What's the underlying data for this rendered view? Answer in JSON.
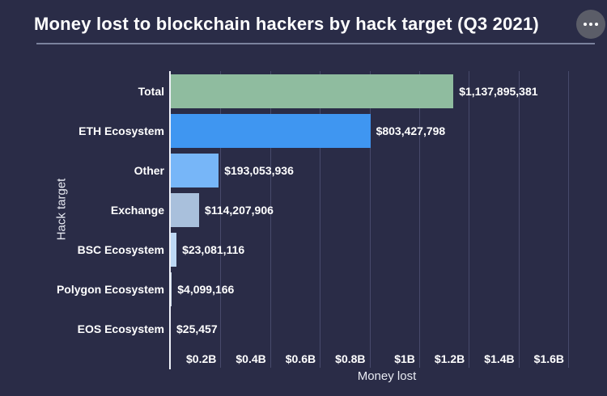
{
  "header": {
    "title": "Money lost to blockchain hackers by hack target (Q3 2021)",
    "menu_icon": "more-options-ellipsis"
  },
  "chart_data": {
    "type": "bar",
    "orientation": "horizontal",
    "title": "Money lost to blockchain hackers by hack target (Q3 2021)",
    "xlabel": "Money lost",
    "ylabel": "Hack target",
    "categories": [
      "Total",
      "ETH Ecosystem",
      "Other",
      "Exchange",
      "BSC Ecosystem",
      "Polygon Ecosystem",
      "EOS Ecosystem"
    ],
    "values": [
      1137895381,
      803427798,
      193053936,
      114207906,
      23081116,
      4099166,
      25457
    ],
    "value_labels": [
      "$1,137,895,381",
      "$803,427,798",
      "$193,053,936",
      "$114,207,906",
      "$23,081,116",
      "$4,099,166",
      "$25,457"
    ],
    "bar_colors": [
      "#8fbc9f",
      "#3f96f1",
      "#77b6f8",
      "#a9c0dc",
      "#bdd8f4",
      "#cddcee",
      "#e4ecf7"
    ],
    "x_ticks": [
      {
        "label": "$0.2B",
        "value": 200000000
      },
      {
        "label": "$0.4B",
        "value": 400000000
      },
      {
        "label": "$0.6B",
        "value": 600000000
      },
      {
        "label": "$0.8B",
        "value": 800000000
      },
      {
        "label": "$1B",
        "value": 1000000000
      },
      {
        "label": "$1.2B",
        "value": 1200000000
      },
      {
        "label": "$1.4B",
        "value": 1400000000
      },
      {
        "label": "$1.6B",
        "value": 1600000000
      }
    ],
    "xlim": [
      0,
      1740000000
    ],
    "grid": true,
    "legend": false
  },
  "style": {
    "background": "#2a2c47",
    "gridline_color": "#474a6b",
    "axis_line_color": "#eef0f8",
    "text_color": "#ffffff",
    "menu_button_color": "#5b5d68"
  }
}
